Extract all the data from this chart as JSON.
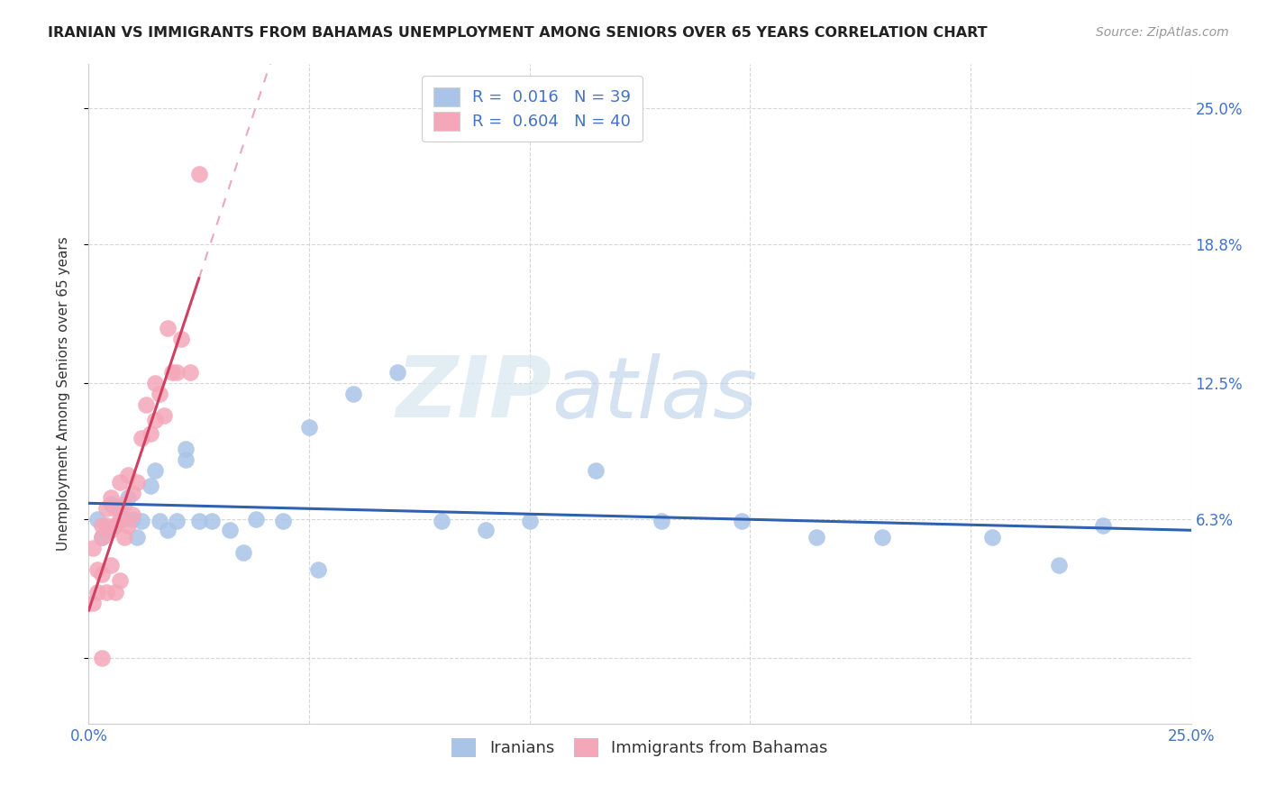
{
  "title": "IRANIAN VS IMMIGRANTS FROM BAHAMAS UNEMPLOYMENT AMONG SENIORS OVER 65 YEARS CORRELATION CHART",
  "source": "Source: ZipAtlas.com",
  "ylabel": "Unemployment Among Seniors over 65 years",
  "xlim": [
    0.0,
    0.25
  ],
  "ylim": [
    -0.03,
    0.27
  ],
  "ytick_vals": [
    0.0,
    0.063,
    0.125,
    0.188,
    0.25
  ],
  "ytick_labels": [
    "",
    "6.3%",
    "12.5%",
    "18.8%",
    "25.0%"
  ],
  "iranians_color": "#aac4e8",
  "bahamas_color": "#f4a7b9",
  "iranians_line_color": "#3060b0",
  "bahamas_line_color": "#d04060",
  "iranians_R": 0.016,
  "iranians_N": 39,
  "bahamas_R": 0.604,
  "bahamas_N": 40,
  "watermark_ZIP": "ZIP",
  "watermark_atlas": "atlas",
  "background_color": "#ffffff",
  "grid_color": "#cccccc",
  "iranians_x": [
    0.002,
    0.003,
    0.004,
    0.005,
    0.006,
    0.007,
    0.008,
    0.009,
    0.01,
    0.011,
    0.012,
    0.014,
    0.015,
    0.016,
    0.018,
    0.02,
    0.022,
    0.025,
    0.028,
    0.032,
    0.038,
    0.044,
    0.05,
    0.06,
    0.07,
    0.08,
    0.09,
    0.1,
    0.115,
    0.13,
    0.148,
    0.165,
    0.18,
    0.205,
    0.22,
    0.23,
    0.022,
    0.035,
    0.052
  ],
  "iranians_y": [
    0.063,
    0.055,
    0.058,
    0.07,
    0.06,
    0.068,
    0.063,
    0.073,
    0.063,
    0.055,
    0.062,
    0.078,
    0.085,
    0.062,
    0.058,
    0.062,
    0.09,
    0.062,
    0.062,
    0.058,
    0.063,
    0.062,
    0.105,
    0.12,
    0.13,
    0.062,
    0.058,
    0.062,
    0.085,
    0.062,
    0.062,
    0.055,
    0.055,
    0.055,
    0.042,
    0.06,
    0.095,
    0.048,
    0.04
  ],
  "bahamas_x": [
    0.001,
    0.001,
    0.002,
    0.002,
    0.003,
    0.003,
    0.003,
    0.003,
    0.004,
    0.004,
    0.004,
    0.005,
    0.005,
    0.005,
    0.006,
    0.006,
    0.006,
    0.007,
    0.007,
    0.007,
    0.008,
    0.008,
    0.009,
    0.009,
    0.01,
    0.01,
    0.011,
    0.012,
    0.013,
    0.014,
    0.015,
    0.015,
    0.016,
    0.017,
    0.018,
    0.019,
    0.02,
    0.021,
    0.023,
    0.025
  ],
  "bahamas_y": [
    0.05,
    0.025,
    0.04,
    0.03,
    0.06,
    0.055,
    0.038,
    0.0,
    0.06,
    0.068,
    0.03,
    0.058,
    0.073,
    0.042,
    0.06,
    0.068,
    0.03,
    0.063,
    0.08,
    0.035,
    0.07,
    0.055,
    0.083,
    0.06,
    0.065,
    0.075,
    0.08,
    0.1,
    0.115,
    0.102,
    0.108,
    0.125,
    0.12,
    0.11,
    0.15,
    0.13,
    0.13,
    0.145,
    0.13,
    0.22
  ]
}
